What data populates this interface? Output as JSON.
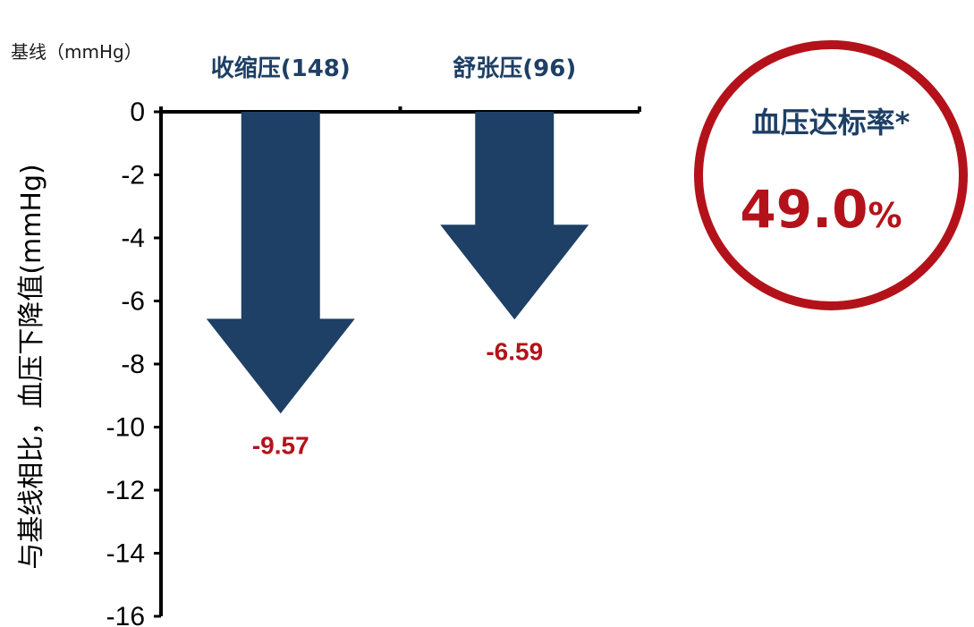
{
  "chart_data": {
    "type": "bar",
    "baseline_label": "基线（mmHg）",
    "ylabel": "与基线相比，血压下降值(mmHg)",
    "categories": [
      "收缩压(148)",
      "舒张压(96)"
    ],
    "values": [
      -9.57,
      -6.59
    ],
    "value_labels": [
      "-9.57",
      "-6.59"
    ],
    "ylim": [
      -16,
      0
    ],
    "yticks": [
      0,
      -2,
      -4,
      -6,
      -8,
      -10,
      -12,
      -14,
      -16
    ],
    "bar_style": "downward-arrow",
    "grid": false,
    "colors": {
      "arrow": "#1e4066",
      "value_label": "#b4121a",
      "category_label": "#1e3f66",
      "axis": "#000000"
    }
  },
  "badge": {
    "title": "血压达标率*",
    "value": "49.0",
    "unit": "%",
    "ring_color": "#b4121a",
    "title_color": "#1e3f66",
    "value_color": "#b4121a"
  }
}
